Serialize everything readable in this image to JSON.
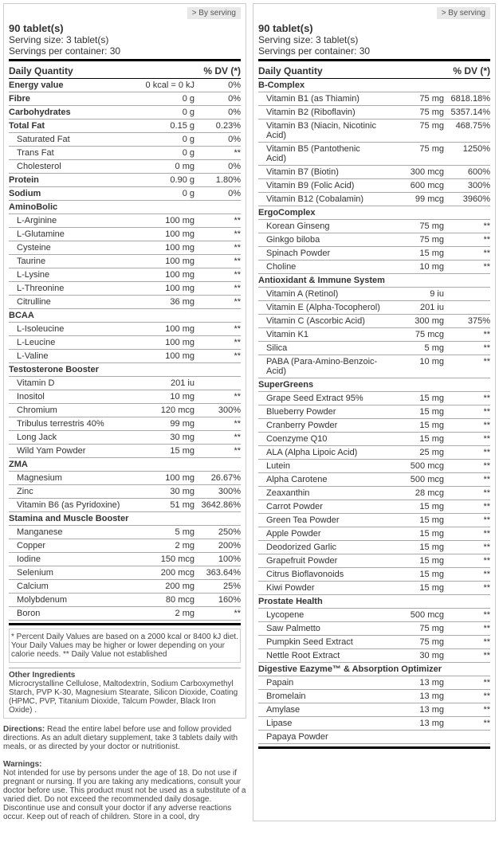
{
  "byserving": "> By serving",
  "p1": {
    "tabs": "90 tablet(s)",
    "ss": "Serving size: 3 tablet(s)",
    "spc": "Servings per container: 30",
    "dq": "Daily Quantity",
    "dv": "% DV (*)",
    "rows": [
      {
        "t": "b",
        "n": "Energy value",
        "a": "0 kcal = 0 kJ",
        "d": "0%"
      },
      {
        "t": "b",
        "n": "Fibre",
        "a": "0 g",
        "d": "0%"
      },
      {
        "t": "b",
        "n": "Carbohydrates",
        "a": "0 g",
        "d": "0%"
      },
      {
        "t": "b",
        "n": "Total Fat",
        "a": "0.15 g",
        "d": "0.23%"
      },
      {
        "t": "s",
        "n": "Saturated Fat",
        "a": "0 g",
        "d": "0%"
      },
      {
        "t": "s",
        "n": "Trans Fat",
        "a": "0 g",
        "d": "**"
      },
      {
        "t": "s",
        "n": "Cholesterol",
        "a": "0 mg",
        "d": "0%"
      },
      {
        "t": "b",
        "n": "Protein",
        "a": "0.90 g",
        "d": "1.80%"
      },
      {
        "t": "b",
        "n": "Sodium",
        "a": "0 g",
        "d": "0%"
      },
      {
        "t": "h",
        "n": "AminoBolic"
      },
      {
        "t": "s",
        "n": "L-Arginine",
        "a": "100 mg",
        "d": "**"
      },
      {
        "t": "s",
        "n": "L-Glutamine",
        "a": "100 mg",
        "d": "**"
      },
      {
        "t": "s",
        "n": "Cysteine",
        "a": "100 mg",
        "d": "**"
      },
      {
        "t": "s",
        "n": "Taurine",
        "a": "100 mg",
        "d": "**"
      },
      {
        "t": "s",
        "n": "L-Lysine",
        "a": "100 mg",
        "d": "**"
      },
      {
        "t": "s",
        "n": "L-Threonine",
        "a": "100 mg",
        "d": "**"
      },
      {
        "t": "s",
        "n": "Citrulline",
        "a": "36 mg",
        "d": "**"
      },
      {
        "t": "h",
        "n": "BCAA"
      },
      {
        "t": "s",
        "n": "L-Isoleucine",
        "a": "100 mg",
        "d": "**"
      },
      {
        "t": "s",
        "n": "L-Leucine",
        "a": "100 mg",
        "d": "**"
      },
      {
        "t": "s",
        "n": "L-Valine",
        "a": "100 mg",
        "d": "**"
      },
      {
        "t": "h",
        "n": "Testosterone Booster"
      },
      {
        "t": "s",
        "n": "Vitamin D",
        "a": "201 iu",
        "d": ""
      },
      {
        "t": "s",
        "n": "Inositol",
        "a": "10 mg",
        "d": "**"
      },
      {
        "t": "s",
        "n": "Chromium",
        "a": "120 mcg",
        "d": "300%"
      },
      {
        "t": "s",
        "n": "Tribulus terrestris 40%",
        "a": "99 mg",
        "d": "**"
      },
      {
        "t": "s",
        "n": "Long Jack",
        "a": "30 mg",
        "d": "**"
      },
      {
        "t": "s",
        "n": "Wild Yam Powder",
        "a": "15 mg",
        "d": "**"
      },
      {
        "t": "h",
        "n": "ZMA"
      },
      {
        "t": "s",
        "n": "Magnesium",
        "a": "100 mg",
        "d": "26.67%"
      },
      {
        "t": "s",
        "n": "Zinc",
        "a": "30 mg",
        "d": "300%"
      },
      {
        "t": "s",
        "n": "Vitamin B6 (as Pyridoxine)",
        "a": "51 mg",
        "d": "3642.86%"
      },
      {
        "t": "h",
        "n": "Stamina and Muscle Booster"
      },
      {
        "t": "s",
        "n": "Manganese",
        "a": "5 mg",
        "d": "250%"
      },
      {
        "t": "s",
        "n": "Copper",
        "a": "2 mg",
        "d": "200%"
      },
      {
        "t": "s",
        "n": "Iodine",
        "a": "150 mcg",
        "d": "100%"
      },
      {
        "t": "s",
        "n": "Selenium",
        "a": "200 mcg",
        "d": "363.64%"
      },
      {
        "t": "s",
        "n": "Calcium",
        "a": "200 mg",
        "d": "25%"
      },
      {
        "t": "s",
        "n": "Molybdenum",
        "a": "80 mcg",
        "d": "160%"
      },
      {
        "t": "s",
        "n": "Boron",
        "a": "2 mg",
        "d": "**"
      }
    ],
    "foot": "* Percent Daily Values are based on a 2000 kcal or 8400 kJ diet. Your Daily Values may be higher or lower depending on your calorie needs.\n** Daily Value not established",
    "oih": "Other Ingredients",
    "oi": "Microcrystalline Cellulose, Maltodextrin, Sodium Carboxymethyl Starch, PVP K-30, Magnesium Stearate, Silicon Dioxide, Coating (HPMC, PVP, Titanium Dioxide, Talcum Powder, Black Iron Oxide) ."
  },
  "p2": {
    "tabs": "90 tablet(s)",
    "ss": "Serving size: 3 tablet(s)",
    "spc": "Servings per container: 30",
    "dq": "Daily Quantity",
    "dv": "% DV (*)",
    "rows": [
      {
        "t": "h",
        "n": "B-Complex"
      },
      {
        "t": "s",
        "n": "Vitamin B1 (as Thiamin)",
        "a": "75 mg",
        "d": "6818.18%"
      },
      {
        "t": "s",
        "n": "Vitamin B2 (Riboflavin)",
        "a": "75 mg",
        "d": "5357.14%"
      },
      {
        "t": "s",
        "n": "Vitamin B3 (Niacin, Nicotinic Acid)",
        "a": "75 mg",
        "d": "468.75%"
      },
      {
        "t": "s",
        "n": "Vitamin B5 (Pantothenic Acid)",
        "a": "75 mg",
        "d": "1250%"
      },
      {
        "t": "s",
        "n": "Vitamin B7 (Biotin)",
        "a": "300 mcg",
        "d": "600%"
      },
      {
        "t": "s",
        "n": "Vitamin B9 (Folic Acid)",
        "a": "600 mcg",
        "d": "300%"
      },
      {
        "t": "s",
        "n": "Vitamin B12 (Cobalamin)",
        "a": "99 mcg",
        "d": "3960%"
      },
      {
        "t": "h",
        "n": "ErgoComplex"
      },
      {
        "t": "s",
        "n": "Korean Ginseng",
        "a": "75 mg",
        "d": "**"
      },
      {
        "t": "s",
        "n": "Ginkgo biloba",
        "a": "75 mg",
        "d": "**"
      },
      {
        "t": "s",
        "n": "Spinach Powder",
        "a": "15 mg",
        "d": "**"
      },
      {
        "t": "s",
        "n": "Choline",
        "a": "10 mg",
        "d": "**"
      },
      {
        "t": "h",
        "n": "Antioxidant & Immune System"
      },
      {
        "t": "s",
        "n": "Vitamin A (Retinol)",
        "a": "9 iu",
        "d": ""
      },
      {
        "t": "s",
        "n": "Vitamin E (Alpha-Tocopherol)",
        "a": "201 iu",
        "d": ""
      },
      {
        "t": "s",
        "n": "Vitamin C (Ascorbic Acid)",
        "a": "300 mg",
        "d": "375%"
      },
      {
        "t": "s",
        "n": "Vitamin K1",
        "a": "75 mcg",
        "d": "**"
      },
      {
        "t": "s",
        "n": "Silica",
        "a": "5 mg",
        "d": "**"
      },
      {
        "t": "s",
        "n": "PABA (Para-Amino-Benzoic-Acid)",
        "a": "10 mg",
        "d": "**"
      },
      {
        "t": "h",
        "n": "SuperGreens"
      },
      {
        "t": "s",
        "n": "Grape Seed Extract 95%",
        "a": "15 mg",
        "d": "**"
      },
      {
        "t": "s",
        "n": "Blueberry Powder",
        "a": "15 mg",
        "d": "**"
      },
      {
        "t": "s",
        "n": "Cranberry Powder",
        "a": "15 mg",
        "d": "**"
      },
      {
        "t": "s",
        "n": "Coenzyme Q10",
        "a": "15 mg",
        "d": "**"
      },
      {
        "t": "s",
        "n": "ALA (Alpha Lipoic Acid)",
        "a": "25 mg",
        "d": "**"
      },
      {
        "t": "s",
        "n": "Lutein",
        "a": "500 mcg",
        "d": "**"
      },
      {
        "t": "s",
        "n": "Alpha Carotene",
        "a": "500 mcg",
        "d": "**"
      },
      {
        "t": "s",
        "n": "Zeaxanthin",
        "a": "28 mcg",
        "d": "**"
      },
      {
        "t": "s",
        "n": "Carrot Powder",
        "a": "15 mg",
        "d": "**"
      },
      {
        "t": "s",
        "n": "Green Tea Powder",
        "a": "15 mg",
        "d": "**"
      },
      {
        "t": "s",
        "n": "Apple Powder",
        "a": "15 mg",
        "d": "**"
      },
      {
        "t": "s",
        "n": "Deodorized Garlic",
        "a": "15 mg",
        "d": "**"
      },
      {
        "t": "s",
        "n": "Grapefruit Powder",
        "a": "15 mg",
        "d": "**"
      },
      {
        "t": "s",
        "n": "Citrus Bioflavonoids",
        "a": "15 mg",
        "d": "**"
      },
      {
        "t": "s",
        "n": "Kiwi Powder",
        "a": "15 mg",
        "d": "**"
      },
      {
        "t": "h",
        "n": "Prostate Health"
      },
      {
        "t": "s",
        "n": "Lycopene",
        "a": "500 mcg",
        "d": "**"
      },
      {
        "t": "s",
        "n": "Saw Palmetto",
        "a": "75 mg",
        "d": "**"
      },
      {
        "t": "s",
        "n": "Pumpkin Seed Extract",
        "a": "75 mg",
        "d": "**"
      },
      {
        "t": "s",
        "n": "Nettle Root Extract",
        "a": "30 mg",
        "d": "**"
      },
      {
        "t": "h",
        "n": "Digestive Eazyme™ & Absorption Optimizer"
      },
      {
        "t": "s",
        "n": "Papain",
        "a": "13 mg",
        "d": "**"
      },
      {
        "t": "s",
        "n": "Bromelain",
        "a": "13 mg",
        "d": "**"
      },
      {
        "t": "s",
        "n": "Amylase",
        "a": "13 mg",
        "d": "**"
      },
      {
        "t": "s",
        "n": "Lipase",
        "a": "13 mg",
        "d": "**"
      },
      {
        "t": "s",
        "n": "Papaya Powder",
        "a": "",
        "d": ""
      }
    ]
  },
  "dir_h": "Directions:",
  "dir": " Read the entire label before use and follow provided directions. As an adult dietary supplement, take 3 tablets daily with meals, or as directed by your doctor or nutritionist.",
  "warn_h": "Warnings:",
  "warn": "Not intended for use by persons under the age of 18. Do not use if pregnant or nursing. If you are taking any medications, consult your doctor before use. This product must not be used as a substitute of a varied diet. Do not exceed the recommended daily dosage. Discontinue use and consult your doctor if any adverse reactions occur. Keep out of reach of children. Store in a cool, dry"
}
